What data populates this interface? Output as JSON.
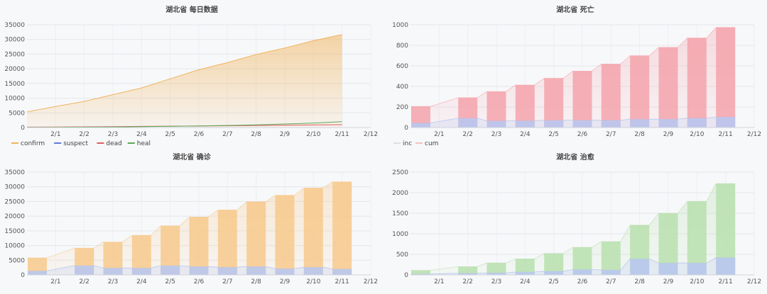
{
  "colors": {
    "confirm": "#f0b55f",
    "suspect": "#5b7bd8",
    "dead": "#e05c5c",
    "heal": "#5aa85a",
    "inc": "#b9c8f0",
    "cum_red": "#f4a3ab",
    "cum_orange": "#f7c98c",
    "cum_green": "#b9dfae"
  },
  "chart_data": [
    {
      "type": "area",
      "title": "湖北省 每日数据",
      "x_ticks": [
        "2/1",
        "2/2",
        "2/3",
        "2/4",
        "2/5",
        "2/6",
        "2/7",
        "2/8",
        "2/9",
        "2/10",
        "2/11",
        "2/12"
      ],
      "ylim": [
        0,
        35000
      ],
      "y_ticks": [
        0,
        5000,
        10000,
        15000,
        20000,
        25000,
        30000,
        35000
      ],
      "x": [
        0,
        1,
        2,
        3,
        4,
        5,
        6,
        7,
        8,
        9,
        10,
        11,
        12
      ],
      "series": [
        {
          "name": "confirm",
          "values": [
            5300,
            7200,
            8900,
            11200,
            13500,
            16600,
            19700,
            22100,
            24900,
            27100,
            29600,
            31700,
            null
          ]
        },
        {
          "name": "suspect",
          "values": [
            0,
            0,
            0,
            0,
            0,
            0,
            0,
            0,
            0,
            0,
            0,
            0,
            null
          ]
        },
        {
          "name": "dead",
          "values": [
            150,
            200,
            250,
            310,
            380,
            450,
            500,
            600,
            700,
            780,
            870,
            970,
            null
          ]
        },
        {
          "name": "heal",
          "values": [
            80,
            100,
            150,
            200,
            300,
            400,
            550,
            700,
            900,
            1200,
            1500,
            2000,
            null
          ]
        }
      ],
      "legend_position": "bottom-left"
    },
    {
      "type": "bar",
      "title": "湖北省 死亡",
      "x_ticks": [
        "2/1",
        "2/2",
        "2/3",
        "2/4",
        "2/5",
        "2/6",
        "2/7",
        "2/8",
        "2/9",
        "2/10",
        "2/11",
        "2/12"
      ],
      "ylim": [
        0,
        1000
      ],
      "y_ticks": [
        0,
        200,
        400,
        600,
        800,
        1000
      ],
      "x": [
        0,
        2,
        3,
        4,
        5,
        6,
        7,
        8,
        9,
        10,
        11
      ],
      "series": [
        {
          "name": "inc",
          "values": [
            45,
            90,
            65,
            66,
            70,
            72,
            70,
            81,
            82,
            91,
            103
          ]
        },
        {
          "name": "cum",
          "values": [
            205,
            290,
            350,
            414,
            479,
            549,
            618,
            699,
            780,
            871,
            974
          ]
        }
      ],
      "legend_position": "bottom-left"
    },
    {
      "type": "bar",
      "title": "湖北省 确诊",
      "x_ticks": [
        "2/1",
        "2/2",
        "2/3",
        "2/4",
        "2/5",
        "2/6",
        "2/7",
        "2/8",
        "2/9",
        "2/10",
        "2/11",
        "2/12"
      ],
      "ylim": [
        0,
        35000
      ],
      "y_ticks": [
        0,
        5000,
        10000,
        15000,
        20000,
        25000,
        30000,
        35000
      ],
      "x": [
        0,
        2,
        3,
        4,
        5,
        6,
        7,
        8,
        9,
        10,
        11
      ],
      "series": [
        {
          "name": "inc",
          "values": [
            1350,
            3150,
            2350,
            2350,
            3150,
            2850,
            2600,
            2850,
            2150,
            2600,
            2000
          ]
        },
        {
          "name": "cum",
          "values": [
            5800,
            9100,
            11200,
            13500,
            16700,
            19700,
            22100,
            24900,
            27100,
            29600,
            31700
          ]
        }
      ]
    },
    {
      "type": "bar",
      "title": "湖北省 治愈",
      "x_ticks": [
        "2/1",
        "2/2",
        "2/3",
        "2/4",
        "2/5",
        "2/6",
        "2/7",
        "2/8",
        "2/9",
        "2/10",
        "2/11",
        "2/12"
      ],
      "ylim": [
        0,
        2500
      ],
      "y_ticks": [
        0,
        500,
        1000,
        1500,
        2000,
        2500
      ],
      "x": [
        0,
        2,
        3,
        4,
        5,
        6,
        7,
        8,
        9,
        10,
        11
      ],
      "series": [
        {
          "name": "inc",
          "values": [
            20,
            40,
            50,
            70,
            90,
            130,
            120,
            390,
            290,
            290,
            420
          ]
        },
        {
          "name": "cum",
          "values": [
            110,
            200,
            290,
            390,
            520,
            670,
            810,
            1210,
            1500,
            1790,
            2220
          ]
        }
      ]
    }
  ]
}
